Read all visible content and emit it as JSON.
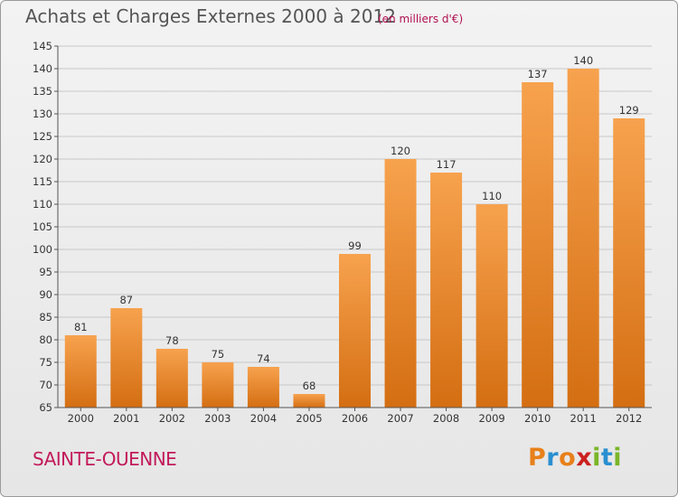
{
  "title": "Achats et Charges Externes 2000 à 2012",
  "subtitle": "(en milliers d'€)",
  "commune": "SAINTE-OUENNE",
  "logo": {
    "letters": [
      "P",
      "r",
      "o",
      "x",
      "i",
      "t",
      "i"
    ],
    "colors": [
      "#e8801a",
      "#2a8fd0",
      "#e8801a",
      "#cc2020",
      "#7ab528",
      "#2a8fd0",
      "#7ab528"
    ]
  },
  "colors": {
    "bar_top": "#f7a24e",
    "bar_bottom": "#d46e12",
    "grid": "#c8c8c8",
    "axis": "#555555"
  },
  "chart_data": {
    "type": "bar",
    "categories": [
      "2000",
      "2001",
      "2002",
      "2003",
      "2004",
      "2005",
      "2006",
      "2007",
      "2008",
      "2009",
      "2010",
      "2011",
      "2012"
    ],
    "values": [
      81,
      87,
      78,
      75,
      74,
      68,
      99,
      120,
      117,
      110,
      137,
      140,
      129
    ],
    "ylim": [
      65,
      145
    ],
    "yticks": [
      65,
      70,
      75,
      80,
      85,
      90,
      95,
      100,
      105,
      110,
      115,
      120,
      125,
      130,
      135,
      140,
      145
    ],
    "grid": true,
    "xlabel": "",
    "ylabel": ""
  }
}
